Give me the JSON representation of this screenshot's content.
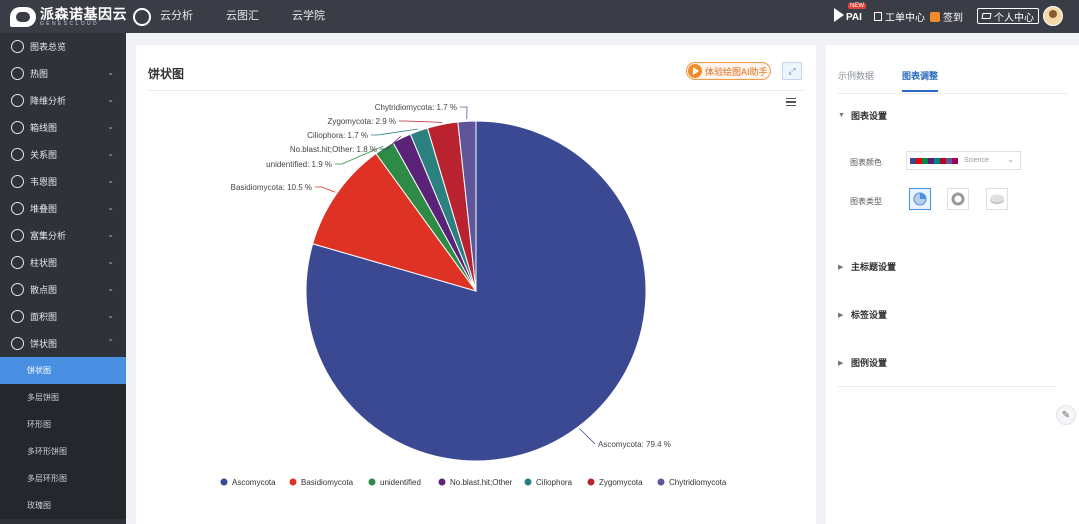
{
  "app": {
    "logo_cn": "派森诺基因云",
    "logo_en": "GENESCLOUD",
    "nav": [
      "云分析",
      "云图汇",
      "云学院"
    ],
    "pai_label": "PAI",
    "pai_badge": "NEW",
    "ticket_label": "工单中心",
    "signin_label": "签到",
    "personal_label": "个人中心"
  },
  "sidebar": {
    "items": [
      {
        "label": "图表总览",
        "icon": "overview-icon",
        "chevron": ""
      },
      {
        "label": "热图",
        "icon": "heatmap-icon",
        "chevron": "⌄"
      },
      {
        "label": "降维分析",
        "icon": "dimension-icon",
        "chevron": "⌄"
      },
      {
        "label": "箱线图",
        "icon": "boxplot-icon",
        "chevron": "⌄"
      },
      {
        "label": "关系图",
        "icon": "network-icon",
        "chevron": "⌄"
      },
      {
        "label": "韦恩图",
        "icon": "venn-icon",
        "chevron": "⌄"
      },
      {
        "label": "堆叠图",
        "icon": "stack-icon",
        "chevron": "⌄"
      },
      {
        "label": "富集分析",
        "icon": "enrich-icon",
        "chevron": "⌄"
      },
      {
        "label": "柱状图",
        "icon": "bar-icon",
        "chevron": "⌄"
      },
      {
        "label": "散点图",
        "icon": "scatter-icon",
        "chevron": "⌄"
      },
      {
        "label": "面积图",
        "icon": "area-icon",
        "chevron": "⌄"
      },
      {
        "label": "饼状图",
        "icon": "pie-icon",
        "chevron": "⌃"
      }
    ],
    "sub_items": [
      "饼状图",
      "多层饼图",
      "环形图",
      "多环形饼图",
      "多层环形图",
      "玫瑰图"
    ]
  },
  "main": {
    "title": "饼状图",
    "ai_button": "体验绘图AI助手",
    "expand_glyph": "⤢"
  },
  "right_panel": {
    "tabs": [
      "示例数据",
      "图表调整"
    ],
    "sections": [
      "图表设置",
      "主标题设置",
      "标签设置",
      "图例设置"
    ],
    "color_label": "图表颜色",
    "color_scheme": "Science",
    "color_swatches": [
      "#3b4992",
      "#ee0000",
      "#008b45",
      "#631879",
      "#008280",
      "#bb0021",
      "#5f559b",
      "#a20056"
    ],
    "type_label": "图表类型",
    "edit_glyph": "✎"
  },
  "chart_data": {
    "type": "pie",
    "categories": [
      "Ascomycota",
      "Basidiomycota",
      "unidentified",
      "No.blast.hit;Other",
      "Ciliophora",
      "Zygomycota",
      "Chytridiomycota"
    ],
    "values": [
      79.4,
      10.5,
      1.9,
      1.8,
      1.7,
      2.9,
      1.7
    ],
    "colors": [
      "#3b4992",
      "#dd3224",
      "#2e8b45",
      "#5a2378",
      "#2a8180",
      "#bb2230",
      "#5f559b"
    ],
    "labels": [
      "Ascomycota: 79.4 %",
      "Basidiomycota: 10.5 %",
      "unidentified: 1.9 %",
      "No.blast.hit;Other: 1.8 %",
      "Ciliophora: 1.7 %",
      "Zygomycota: 2.9 %",
      "Chytridiomycota: 1.7 %"
    ],
    "start_angle_deg": 0,
    "direction": "clockwise",
    "legend_position": "bottom"
  }
}
